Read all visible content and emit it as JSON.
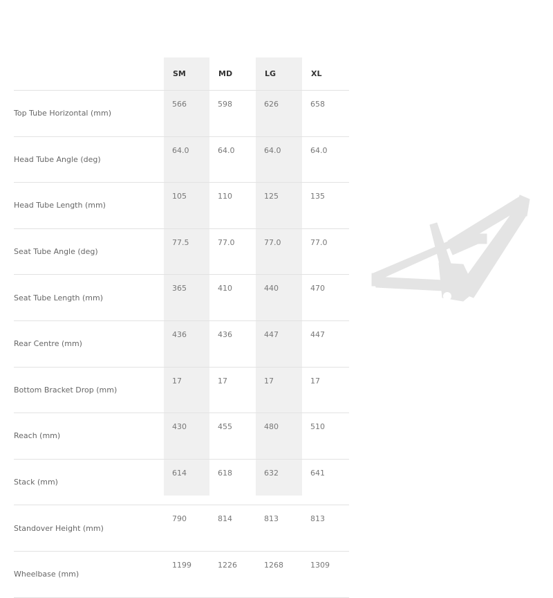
{
  "table": {
    "columns": [
      "SM",
      "MD",
      "LG",
      "XL"
    ],
    "rows": [
      {
        "label": "Top Tube Horizontal (mm)",
        "values": [
          "566",
          "598",
          "626",
          "658"
        ]
      },
      {
        "label": "Head Tube Angle (deg)",
        "values": [
          "64.0",
          "64.0",
          "64.0",
          "64.0"
        ]
      },
      {
        "label": "Head Tube Length (mm)",
        "values": [
          "105",
          "110",
          "125",
          "135"
        ]
      },
      {
        "label": "Seat Tube Angle (deg)",
        "values": [
          "77.5",
          "77.0",
          "77.0",
          "77.0"
        ]
      },
      {
        "label": "Seat Tube Length (mm)",
        "values": [
          "365",
          "410",
          "440",
          "470"
        ]
      },
      {
        "label": "Rear Centre (mm)",
        "values": [
          "436",
          "436",
          "447",
          "447"
        ]
      },
      {
        "label": "Bottom Bracket Drop (mm)",
        "values": [
          "17",
          "17",
          "17",
          "17"
        ]
      },
      {
        "label": "Reach (mm)",
        "values": [
          "430",
          "455",
          "480",
          "510"
        ]
      },
      {
        "label": "Stack (mm)",
        "values": [
          "614",
          "618",
          "632",
          "641"
        ]
      },
      {
        "label": "Standover Height (mm)",
        "values": [
          "790",
          "814",
          "813",
          "813"
        ]
      },
      {
        "label": "Wheelbase (mm)",
        "values": [
          "1199",
          "1226",
          "1268",
          "1309"
        ]
      }
    ]
  },
  "colors": {
    "shaded_column": "#f0f0f0",
    "frame": "#e4e4e4",
    "divider": "#e2e2e2"
  },
  "image": {
    "icon": "bike-frame-silhouette"
  }
}
